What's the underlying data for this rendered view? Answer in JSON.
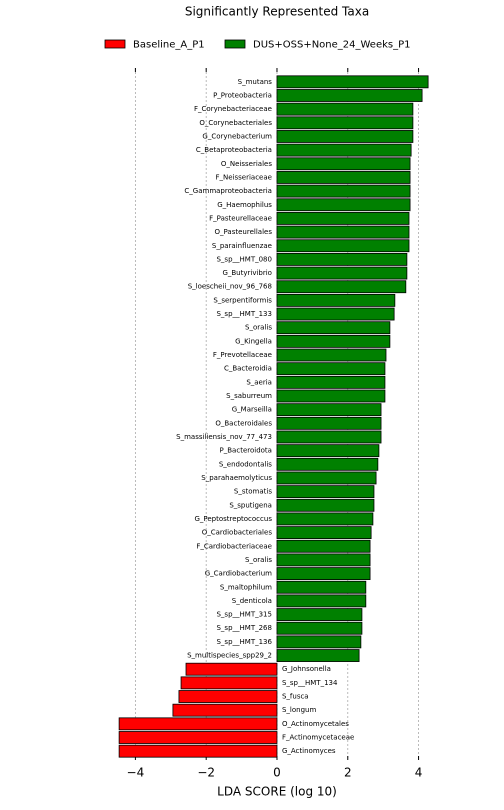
{
  "chart_data": {
    "type": "barh",
    "title": "Significantly Represented Taxa",
    "xlabel": "LDA SCORE (log 10)",
    "categories": [
      "S_mutans",
      "P_Proteobacteria",
      "F_Corynebacteriaceae",
      "O_Corynebacteriales",
      "G_Corynebacterium",
      "C_Betaproteobacteria",
      "O_Neisseriales",
      "F_Neisseriaceae",
      "C_Gammaproteobacteria",
      "G_Haemophilus",
      "F_Pasteurellaceae",
      "O_Pasteurellales",
      "S_parainfluenzae",
      "S_sp__HMT_080",
      "G_Butyrivibrio",
      "S_loescheii_nov_96_768",
      "S_serpentiformis",
      "S_sp__HMT_133",
      "S_oralis",
      "G_Kingella",
      "F_Prevotellaceae",
      "C_Bacteroidia",
      "S_aeria",
      "S_saburreum",
      "G_Marseilla",
      "O_Bacteroidales",
      "S_massiliensis_nov_77_473",
      "P_Bacteroidota",
      "S_endodontalis",
      "S_parahaemolyticus",
      "S_stomatis",
      "S_sputigena",
      "G_Peptostreptococcus",
      "O_Cardiobacteriales",
      "F_Cardiobacteriaceae",
      "S_oralis",
      "G_Cardiobacterium",
      "S_maltophilum",
      "S_denticola",
      "S_sp__HMT_315",
      "S_sp__HMT_268",
      "S_sp__HMT_136",
      "S_multispecies_spp29_2",
      "G_Johnsonella",
      "S_sp__HMT_134",
      "S_fusca",
      "S_longum",
      "O_Actinomycetales",
      "F_Actinomycetaceae",
      "G_Actinomyces"
    ],
    "series": [
      {
        "name": "Baseline_A_P1",
        "color": "#ff0000",
        "values": [
          null,
          null,
          null,
          null,
          null,
          null,
          null,
          null,
          null,
          null,
          null,
          null,
          null,
          null,
          null,
          null,
          null,
          null,
          null,
          null,
          null,
          null,
          null,
          null,
          null,
          null,
          null,
          null,
          null,
          null,
          null,
          null,
          null,
          null,
          null,
          null,
          null,
          null,
          null,
          null,
          null,
          null,
          null,
          -2.57,
          -2.71,
          -2.77,
          -2.94,
          -4.46,
          -4.46,
          -4.46
        ]
      },
      {
        "name": "DUS+OSS+None_24_Weeks_P1",
        "color": "#008000",
        "values": [
          4.27,
          4.1,
          3.84,
          3.84,
          3.84,
          3.79,
          3.76,
          3.76,
          3.76,
          3.76,
          3.73,
          3.73,
          3.73,
          3.67,
          3.67,
          3.64,
          3.33,
          3.31,
          3.19,
          3.19,
          3.08,
          3.05,
          3.05,
          3.05,
          2.94,
          2.94,
          2.94,
          2.88,
          2.85,
          2.8,
          2.74,
          2.74,
          2.71,
          2.66,
          2.63,
          2.63,
          2.63,
          2.51,
          2.51,
          2.4,
          2.4,
          2.37,
          2.32,
          null,
          null,
          null,
          null,
          null,
          null,
          null
        ]
      }
    ],
    "xlim": [
      -4.5,
      4.6
    ],
    "xticks": [
      {
        "value": -4,
        "label": "−4"
      },
      {
        "value": -2,
        "label": "−2"
      },
      0,
      2,
      4
    ],
    "grid": true
  }
}
